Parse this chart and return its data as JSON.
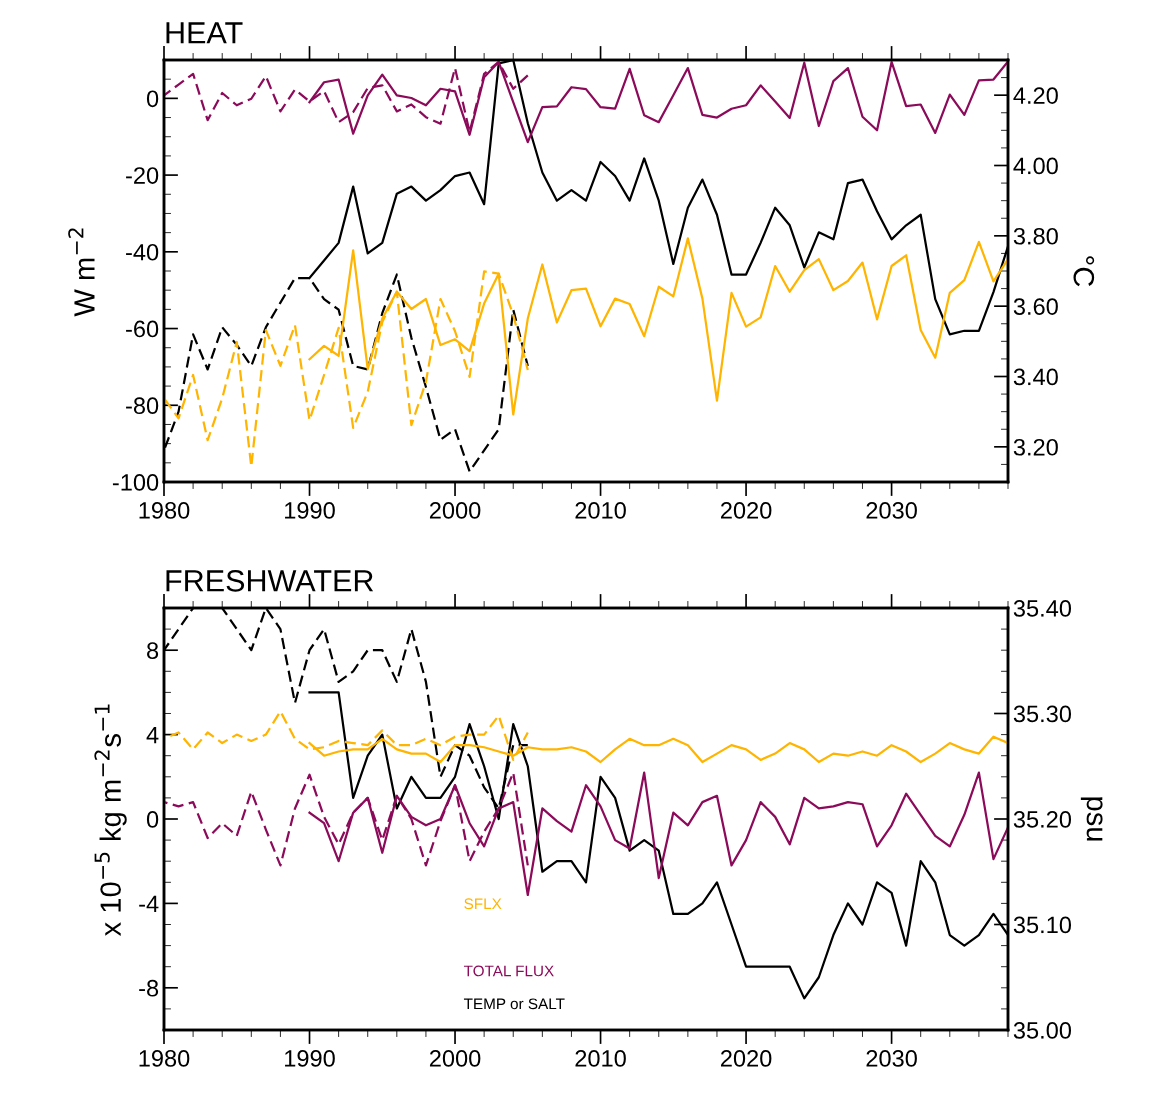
{
  "chart_data": [
    {
      "type": "line",
      "title": "HEAT",
      "ylabel": "W m$^{−2}$",
      "y2label": "°C",
      "xlim": [
        1980,
        2038
      ],
      "xticks": [
        1980,
        1990,
        2000,
        2010,
        2020,
        2030
      ],
      "ylim": [
        -100,
        10
      ],
      "yticks": [
        -100,
        -80,
        -60,
        -40,
        -20,
        0
      ],
      "y2lim": [
        3.1,
        4.3
      ],
      "y2ticks": [
        {
          "value": 3.2,
          "label": "3.20"
        },
        {
          "value": 3.4,
          "label": "3.40"
        },
        {
          "value": 3.6,
          "label": "3.60"
        },
        {
          "value": 3.8,
          "label": "3.80"
        },
        {
          "value": 4.0,
          "label": "4.00"
        },
        {
          "value": 4.2,
          "label": "4.20"
        }
      ],
      "grid": false,
      "legend": false,
      "marker": "none",
      "series": [
        {
          "color": "#8c0a5a",
          "line_style": "dashed",
          "x": [
            1980,
            1981,
            1982,
            1983,
            1984,
            1985,
            1986,
            1987,
            1988,
            1989,
            1990,
            1991,
            1992,
            1993,
            1994,
            1995,
            1996,
            1997,
            1998,
            1999,
            2000,
            2001,
            2002,
            2003,
            2004,
            2005
          ],
          "values": [
            0.8,
            3.6,
            6.4,
            -5.7,
            1.4,
            -1.8,
            -0.1,
            5.8,
            -3.4,
            2.3,
            -0.8,
            1.9,
            -6.2,
            -3.6,
            2.7,
            3.4,
            -3.4,
            -1.6,
            -4.9,
            -6.6,
            7.9,
            -8.8,
            6.4,
            9.5,
            2.5,
            6.0
          ]
        },
        {
          "color": "#8c0a5a",
          "line_style": "solid",
          "x": [
            1990,
            1991,
            1992,
            1993,
            1994,
            1995,
            1996,
            1997,
            1998,
            1999,
            2000,
            2001,
            2002,
            2003,
            2004,
            2005,
            2006,
            2007,
            2008,
            2009,
            2010,
            2011,
            2012,
            2013,
            2014,
            2015,
            2016,
            2017,
            2018,
            2019,
            2020,
            2021,
            2022,
            2023,
            2024,
            2025,
            2026,
            2027,
            2028,
            2029,
            2030,
            2031,
            2032,
            2033,
            2034,
            2035,
            2036,
            2037,
            2038
          ],
          "values": [
            -1.0,
            4.2,
            4.9,
            -9.2,
            0.8,
            6.2,
            0.8,
            0.1,
            -1.8,
            2.5,
            1.8,
            -9.5,
            5.5,
            9.5,
            -1.0,
            -11.4,
            -2.3,
            -2.1,
            2.9,
            2.4,
            -2.3,
            -2.7,
            7.7,
            -4.4,
            -6.2,
            0.8,
            7.9,
            -4.3,
            -5.0,
            -2.7,
            -1.8,
            3.4,
            -0.8,
            -5.1,
            9.3,
            -7.2,
            4.5,
            7.9,
            -4.8,
            -8.3,
            9.5,
            -2.0,
            -1.6,
            -9.0,
            1.0,
            -4.3,
            4.7,
            4.9,
            9.6
          ]
        },
        {
          "color": "#ffb400",
          "line_style": "dashed",
          "x": [
            1980,
            1981,
            1982,
            1983,
            1984,
            1985,
            1986,
            1987,
            1988,
            1989,
            1990,
            1991,
            1992,
            1993,
            1994,
            1995,
            1996,
            1997,
            1998,
            1999,
            2000,
            2001,
            2002,
            2003,
            2004,
            2005
          ],
          "values": [
            -78.2,
            -83.4,
            -72.1,
            -89.1,
            -78.2,
            -63.5,
            -96.0,
            -60.4,
            -69.7,
            -59.1,
            -83.9,
            -72.1,
            -59.8,
            -85.9,
            -76.5,
            -58.3,
            -50.4,
            -85.2,
            -73.9,
            -52.3,
            -60.7,
            -72.6,
            -45.1,
            -45.7,
            -56.5,
            -70.8
          ]
        },
        {
          "color": "#ffb400",
          "line_style": "solid",
          "x": [
            1990,
            1991,
            1992,
            1993,
            1994,
            1995,
            1996,
            1997,
            1998,
            1999,
            2000,
            2001,
            2002,
            2003,
            2004,
            2005,
            2006,
            2007,
            2008,
            2009,
            2010,
            2011,
            2012,
            2013,
            2014,
            2015,
            2016,
            2017,
            2018,
            2019,
            2020,
            2021,
            2022,
            2023,
            2024,
            2025,
            2026,
            2027,
            2028,
            2029,
            2030,
            2031,
            2032,
            2033,
            2034,
            2035,
            2036,
            2037,
            2038
          ],
          "values": [
            -68.0,
            -64.5,
            -67.1,
            -39.6,
            -70.6,
            -57.4,
            -50.4,
            -54.9,
            -52.3,
            -64.3,
            -62.8,
            -65.9,
            -53.5,
            -45.7,
            -82.4,
            -57.4,
            -43.3,
            -58.4,
            -50.0,
            -49.6,
            -59.4,
            -52.2,
            -53.6,
            -62.0,
            -49.1,
            -51.6,
            -36.5,
            -52.2,
            -78.8,
            -50.7,
            -59.5,
            -57.1,
            -43.7,
            -50.4,
            -44.8,
            -41.9,
            -50.0,
            -47.6,
            -42.8,
            -57.6,
            -43.7,
            -40.9,
            -60.4,
            -67.6,
            -50.7,
            -47.4,
            -37.4,
            -47.7,
            -41.9
          ]
        },
        {
          "color": "#000000",
          "line_style": "dashed",
          "axis": "y2",
          "x": [
            1980,
            1981,
            1982,
            1983,
            1984,
            1985,
            1986,
            1987,
            1988,
            1989,
            1990,
            1991,
            1992,
            1993,
            1994,
            1995,
            1996,
            1997,
            1998,
            1999,
            2000,
            2001,
            2002,
            2003,
            2004,
            2005
          ],
          "values": [
            3.19,
            3.3,
            3.52,
            3.42,
            3.54,
            3.49,
            3.43,
            3.54,
            3.61,
            3.68,
            3.68,
            3.62,
            3.59,
            3.43,
            3.42,
            3.58,
            3.69,
            3.51,
            3.37,
            3.22,
            3.25,
            3.13,
            3.19,
            3.25,
            3.59,
            3.43
          ]
        },
        {
          "color": "#000000",
          "line_style": "solid",
          "axis": "y2",
          "x": [
            1990,
            1991,
            1992,
            1993,
            1994,
            1995,
            1996,
            1997,
            1998,
            1999,
            2000,
            2001,
            2002,
            2003,
            2004,
            2005,
            2006,
            2007,
            2008,
            2009,
            2010,
            2011,
            2012,
            2013,
            2014,
            2015,
            2016,
            2017,
            2018,
            2019,
            2020,
            2021,
            2022,
            2023,
            2024,
            2025,
            2026,
            2027,
            2028,
            2029,
            2030,
            2031,
            2032,
            2033,
            2034,
            2035,
            2036,
            2037,
            2038
          ],
          "values": [
            3.68,
            3.73,
            3.78,
            3.94,
            3.75,
            3.78,
            3.92,
            3.94,
            3.9,
            3.93,
            3.97,
            3.98,
            3.89,
            4.29,
            4.3,
            4.12,
            3.98,
            3.9,
            3.93,
            3.9,
            4.01,
            3.97,
            3.9,
            4.02,
            3.9,
            3.72,
            3.88,
            3.96,
            3.86,
            3.69,
            3.69,
            3.78,
            3.88,
            3.83,
            3.71,
            3.81,
            3.79,
            3.95,
            3.96,
            3.87,
            3.79,
            3.83,
            3.86,
            3.62,
            3.52,
            3.53,
            3.53,
            3.64,
            3.77
          ]
        }
      ]
    },
    {
      "type": "line",
      "title": "FRESHWATER",
      "ylabel": "x 10$^{−5}$ kg m$^{−2}$s$^{−1}$",
      "y2label": "psu",
      "xlim": [
        1980,
        2038
      ],
      "xticks": [
        1980,
        1990,
        2000,
        2010,
        2020,
        2030
      ],
      "ylim": [
        -10,
        10
      ],
      "yticks": [
        -8,
        -4,
        0,
        4,
        8
      ],
      "y2lim": [
        35.0,
        35.4
      ],
      "y2ticks": [
        {
          "value": 35.0,
          "label": "35.00"
        },
        {
          "value": 35.1,
          "label": "35.10"
        },
        {
          "value": 35.2,
          "label": "35.20"
        },
        {
          "value": 35.3,
          "label": "35.30"
        },
        {
          "value": 35.4,
          "label": "35.40"
        }
      ],
      "grid": false,
      "legend": "bottom",
      "marker": "none",
      "series": [
        {
          "color": "#ffb400",
          "line_style": "dashed",
          "x": [
            1980,
            1981,
            1982,
            1983,
            1984,
            1985,
            1986,
            1987,
            1988,
            1989,
            1990,
            1991,
            1992,
            1993,
            1994,
            1995,
            1996,
            1997,
            1998,
            1999,
            2000,
            2001,
            2002,
            2003,
            2004,
            2005
          ],
          "values": [
            3.8,
            4.1,
            3.3,
            4.1,
            3.6,
            4.0,
            3.7,
            4.0,
            5.1,
            3.8,
            3.3,
            3.4,
            3.7,
            3.6,
            3.5,
            4.2,
            3.5,
            3.5,
            3.8,
            3.5,
            3.9,
            4.0,
            4.0,
            4.9,
            2.8,
            4.1
          ]
        },
        {
          "name": "SFLX",
          "color": "#ffb400",
          "line_style": "solid",
          "x": [
            1990,
            1991,
            1992,
            1993,
            1994,
            1995,
            1996,
            1997,
            1998,
            1999,
            2000,
            2001,
            2002,
            2003,
            2004,
            2005,
            2006,
            2007,
            2008,
            2009,
            2010,
            2011,
            2012,
            2013,
            2014,
            2015,
            2016,
            2017,
            2018,
            2019,
            2020,
            2021,
            2022,
            2023,
            2024,
            2025,
            2026,
            2027,
            2028,
            2029,
            2030,
            2031,
            2032,
            2033,
            2034,
            2035,
            2036,
            2037,
            2038
          ],
          "values": [
            3.6,
            3.0,
            3.2,
            3.3,
            3.3,
            3.8,
            3.3,
            3.1,
            3.1,
            2.7,
            3.5,
            3.5,
            3.4,
            3.2,
            3.0,
            3.4,
            3.3,
            3.3,
            3.4,
            3.2,
            2.7,
            3.3,
            3.8,
            3.5,
            3.5,
            3.8,
            3.5,
            2.7,
            3.1,
            3.5,
            3.3,
            2.8,
            3.1,
            3.6,
            3.3,
            2.7,
            3.1,
            3.0,
            3.2,
            3.0,
            3.5,
            3.2,
            2.7,
            3.1,
            3.6,
            3.3,
            3.1,
            3.9,
            3.6
          ]
        },
        {
          "color": "#8c0a5a",
          "line_style": "dashed",
          "x": [
            1980,
            1981,
            1982,
            1983,
            1984,
            1985,
            1986,
            1987,
            1988,
            1989,
            1990,
            1991,
            1992,
            1993,
            1994,
            1995,
            1996,
            1997,
            1998,
            1999,
            2000,
            2001,
            2002,
            2003,
            2004,
            2005
          ],
          "values": [
            0.8,
            0.6,
            0.8,
            -0.9,
            -0.2,
            -0.8,
            1.3,
            -0.5,
            -2.2,
            0.5,
            2.1,
            0.1,
            -1.2,
            0.3,
            1.0,
            -1.0,
            1.1,
            0.0,
            -2.2,
            -0.1,
            1.6,
            -2.0,
            -0.6,
            0.5,
            2.2,
            -2.2
          ]
        },
        {
          "name": "TOTAL FLUX",
          "color": "#8c0a5a",
          "line_style": "solid",
          "x": [
            1990,
            1991,
            1992,
            1993,
            1994,
            1995,
            1996,
            1997,
            1998,
            1999,
            2000,
            2001,
            2002,
            2003,
            2004,
            2005,
            2006,
            2007,
            2008,
            2009,
            2010,
            2011,
            2012,
            2013,
            2014,
            2015,
            2016,
            2017,
            2018,
            2019,
            2020,
            2021,
            2022,
            2023,
            2024,
            2025,
            2026,
            2027,
            2028,
            2029,
            2030,
            2031,
            2032,
            2033,
            2034,
            2035,
            2036,
            2037,
            2038
          ],
          "values": [
            0.3,
            -0.2,
            -2.0,
            0.3,
            1.0,
            -1.6,
            1.1,
            0.1,
            -0.3,
            0.0,
            1.6,
            -0.2,
            -1.3,
            0.5,
            0.8,
            -3.6,
            0.5,
            -0.1,
            -0.6,
            1.6,
            0.6,
            -1.0,
            -1.4,
            2.2,
            -2.8,
            0.3,
            -0.3,
            0.8,
            1.1,
            -2.2,
            -1.0,
            0.8,
            0.1,
            -1.2,
            1.0,
            0.5,
            0.6,
            0.8,
            0.7,
            -1.3,
            -0.3,
            1.2,
            0.2,
            -0.8,
            -1.3,
            0.2,
            2.2,
            -1.9,
            -0.4
          ]
        },
        {
          "color": "#000000",
          "line_style": "dashed",
          "axis": "y2",
          "x": [
            1980,
            1981,
            1982,
            1983,
            1984,
            1985,
            1986,
            1987,
            1988,
            1989,
            1990,
            1991,
            1992,
            1993,
            1994,
            1995,
            1996,
            1997,
            1998,
            1999,
            2000,
            2001,
            2002,
            2003,
            2004,
            2005
          ],
          "values": [
            35.36,
            35.38,
            35.4,
            null,
            35.4,
            35.38,
            35.36,
            35.4,
            35.38,
            35.31,
            35.36,
            35.38,
            35.33,
            35.34,
            35.36,
            35.36,
            35.33,
            35.38,
            35.33,
            35.24,
            35.27,
            35.26,
            35.23,
            35.21,
            35.27,
            35.27
          ]
        },
        {
          "name": "TEMP or SALT",
          "color": "#000000",
          "line_style": "solid",
          "axis": "y2",
          "x": [
            1990,
            1991,
            1992,
            1993,
            1994,
            1995,
            1996,
            1997,
            1998,
            1999,
            2000,
            2001,
            2002,
            2003,
            2004,
            2005,
            2006,
            2007,
            2008,
            2009,
            2010,
            2011,
            2012,
            2013,
            2014,
            2015,
            2016,
            2017,
            2018,
            2019,
            2020,
            2021,
            2022,
            2023,
            2024,
            2025,
            2026,
            2027,
            2028,
            2029,
            2030,
            2031,
            2032,
            2033,
            2034,
            2035,
            2036,
            2037,
            2038
          ],
          "values": [
            35.32,
            35.32,
            35.32,
            35.22,
            35.26,
            35.28,
            35.21,
            35.24,
            35.22,
            35.22,
            35.24,
            35.29,
            35.25,
            35.2,
            35.29,
            35.25,
            35.15,
            35.16,
            35.16,
            35.14,
            35.24,
            35.22,
            35.17,
            35.18,
            35.17,
            35.11,
            35.11,
            35.12,
            35.14,
            35.1,
            35.06,
            35.06,
            35.06,
            35.06,
            35.03,
            35.05,
            35.09,
            35.12,
            35.1,
            35.14,
            35.13,
            35.08,
            35.16,
            35.14,
            35.09,
            35.08,
            35.09,
            35.11,
            35.09
          ]
        }
      ]
    }
  ]
}
